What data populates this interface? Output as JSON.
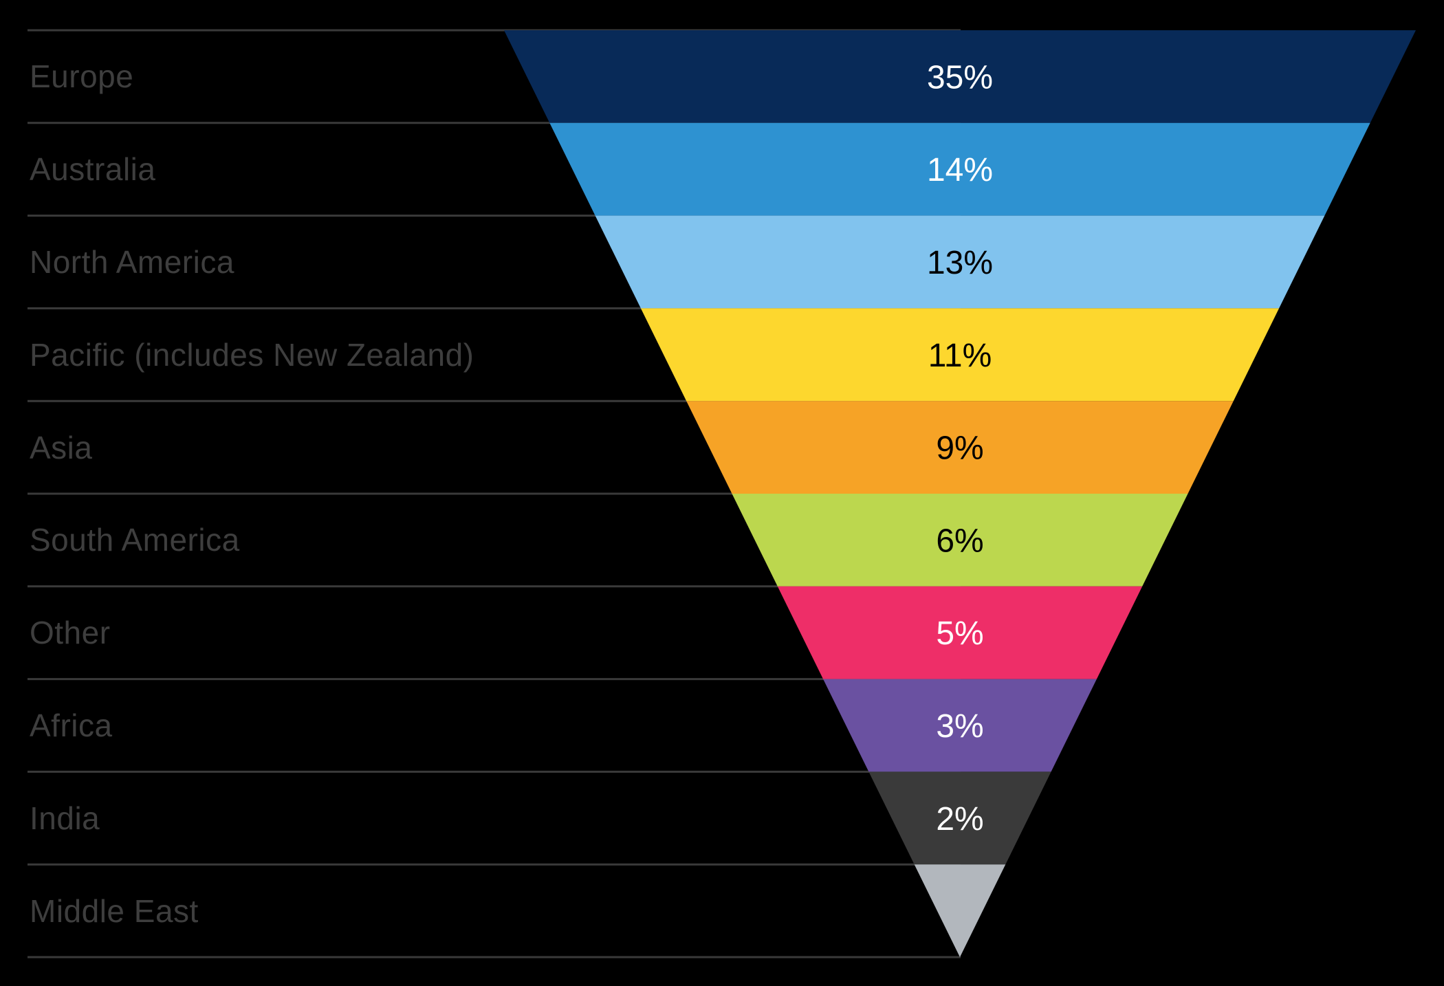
{
  "chart_data": {
    "type": "funnel",
    "title": "",
    "orientation": "inverted-pyramid",
    "legend_position": "left-labels",
    "grid": true,
    "colors": {
      "background": "#000000",
      "gridline": "#3a3a3a",
      "label_text": "#3e3e3e"
    },
    "rows": [
      {
        "label": "Europe",
        "value": 35,
        "value_label": "35%",
        "band_color": "#082a58",
        "value_text_color": "#ffffff"
      },
      {
        "label": "Australia",
        "value": 14,
        "value_label": "14%",
        "band_color": "#2e92d1",
        "value_text_color": "#ffffff"
      },
      {
        "label": "North America",
        "value": 13,
        "value_label": "13%",
        "band_color": "#81c3ee",
        "value_text_color": "#000000"
      },
      {
        "label": "Pacific (includes New Zealand)",
        "value": 11,
        "value_label": "11%",
        "band_color": "#fdd72e",
        "value_text_color": "#000000"
      },
      {
        "label": "Asia",
        "value": 9,
        "value_label": "9%",
        "band_color": "#f6a326",
        "value_text_color": "#000000"
      },
      {
        "label": "South America",
        "value": 6,
        "value_label": "6%",
        "band_color": "#bcd74e",
        "value_text_color": "#000000"
      },
      {
        "label": "Other",
        "value": 5,
        "value_label": "5%",
        "band_color": "#ee2e68",
        "value_text_color": "#ffffff"
      },
      {
        "label": "Africa",
        "value": 3,
        "value_label": "3%",
        "band_color": "#6a51a1",
        "value_text_color": "#ffffff"
      },
      {
        "label": "India",
        "value": 2,
        "value_label": "2%",
        "band_color": "#3a3a3a",
        "value_text_color": "#ffffff"
      },
      {
        "label": "Middle East",
        "value": null,
        "value_label": "",
        "band_color": "#b2b7bd",
        "value_text_color": "#ffffff"
      }
    ]
  }
}
